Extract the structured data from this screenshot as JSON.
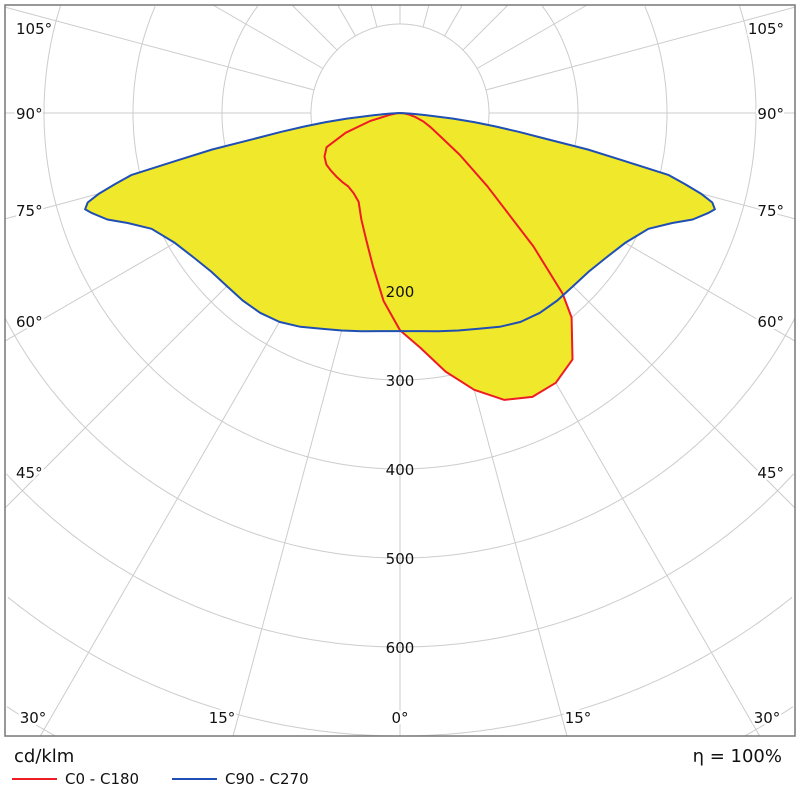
{
  "chart_data": {
    "type": "polar",
    "unit_label": "cd/klm",
    "efficiency_label": "η = 100%",
    "radial_ticks": [
      100,
      200,
      300,
      400,
      500,
      600,
      700,
      800
    ],
    "radial_tick_labels": [
      "200",
      "300",
      "400",
      "500",
      "600"
    ],
    "angle_tick_labels_sides": [
      "105°",
      "90°",
      "75°",
      "60°",
      "45°"
    ],
    "angle_tick_labels_bottom": [
      "30°",
      "15°",
      "0°",
      "15°",
      "30°"
    ],
    "angle_step_deg": 15,
    "fill_color": "#f0e82a",
    "grid_color": "#cccccc",
    "series": [
      {
        "name": "C0 - C180",
        "color": "#ee1c24",
        "gamma": [
          -90,
          -85,
          -80,
          -75,
          -70,
          -65,
          -60,
          -55,
          -50,
          -45,
          -40,
          -35,
          -30,
          -25,
          -20,
          -15,
          -10,
          -5,
          0,
          5,
          10,
          15,
          20,
          25,
          30,
          35,
          40,
          42,
          45,
          50,
          55,
          60,
          65,
          70,
          75,
          80,
          85,
          90
        ],
        "values": [
          0,
          4,
          12,
          35,
          65,
          91,
          98,
          101,
          101,
          101,
          101,
          101,
          104,
          110,
          127,
          147,
          175,
          212,
          244,
          265,
          295,
          322,
          343,
          352,
          350,
          338,
          300,
          273,
          212,
          128,
          82,
          52,
          38,
          28,
          18,
          10,
          5,
          0
        ]
      },
      {
        "name": "C90 - C270",
        "color": "#1f4fb4",
        "gamma": [
          -90,
          -88,
          -87,
          -86,
          -85,
          -84,
          -83,
          -82,
          -81,
          -80,
          -79,
          -78,
          -77,
          -76,
          -75,
          -74,
          -73,
          -72,
          -70,
          -68,
          -65,
          -60,
          -55,
          -50,
          -45,
          -40,
          -35,
          -30,
          -25,
          -20,
          -15,
          -10,
          -5,
          0,
          5,
          10,
          15,
          20,
          25,
          30,
          35,
          40,
          45,
          50,
          55,
          60,
          65,
          68,
          70,
          72,
          73,
          74,
          75,
          76,
          77,
          78,
          79,
          80,
          81,
          82,
          83,
          84,
          85,
          86,
          87,
          88,
          90
        ],
        "values": [
          0,
          5,
          10,
          18,
          30,
          60,
          84,
          108,
          135,
          165,
          215,
          255,
          310,
          330,
          350,
          365,
          370,
          364,
          350,
          330,
          308,
          292,
          283,
          277,
          275,
          275,
          274,
          271,
          265,
          258,
          253,
          249,
          246,
          245,
          246,
          249,
          253,
          258,
          265,
          271,
          274,
          275,
          275,
          277,
          283,
          292,
          308,
          330,
          350,
          364,
          370,
          365,
          350,
          330,
          310,
          255,
          215,
          165,
          135,
          108,
          84,
          60,
          30,
          18,
          10,
          5,
          0
        ]
      }
    ]
  }
}
